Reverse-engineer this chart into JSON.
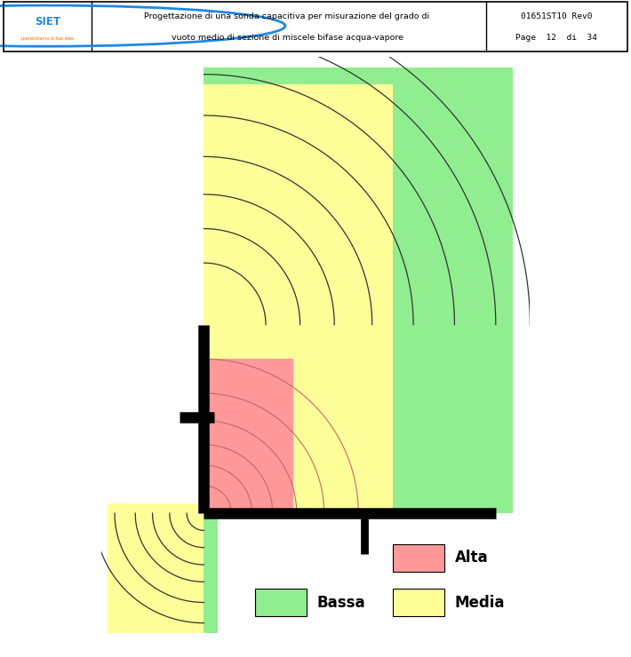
{
  "fig_bg": "#ffffff",
  "green_color": "#90EE90",
  "yellow_color": "#FFFF99",
  "pink_color": "#FF9999",
  "arc_color_dark": "#333333",
  "arc_color_pink": "#cc6666",
  "legend_alta": "Alta",
  "legend_media": "Media",
  "legend_bassa": "Bassa",
  "header_line1": "Progettazione di una sonda capacitiva per misurazione del grado di",
  "header_line2": "vuoto medio di sezione di miscele bifase acqua-vapore",
  "header_ref1": "01651ST10 Rev0",
  "header_ref2": "Page  12  di  34"
}
